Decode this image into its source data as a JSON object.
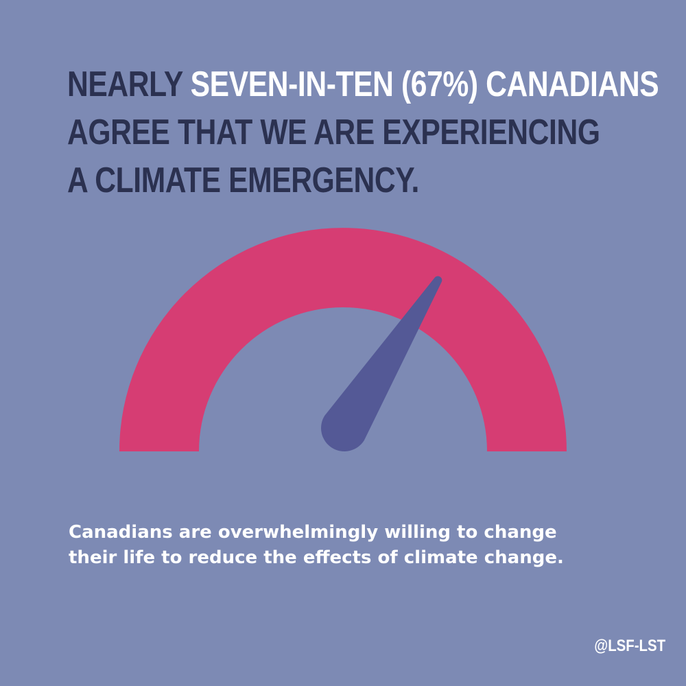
{
  "headline": {
    "line1_prefix": "NEARLY ",
    "line1_highlight": "SEVEN-IN-TEN (67%) CANADIANS",
    "line2": "AGREE THAT WE ARE EXPERIENCING",
    "line3": "A CLIMATE EMERGENCY."
  },
  "gauge": {
    "value_percent": 67,
    "arc_color": "#d63d73",
    "needle_color": "#545996"
  },
  "caption": {
    "line1": "Canadians are overwhelmingly willing to change",
    "line2": "their life to reduce the effects of climate change."
  },
  "handle": "@LSF-LST",
  "colors": {
    "background": "#7d8ab4",
    "headline_text": "#2b3150",
    "highlight_text": "#ffffff"
  }
}
